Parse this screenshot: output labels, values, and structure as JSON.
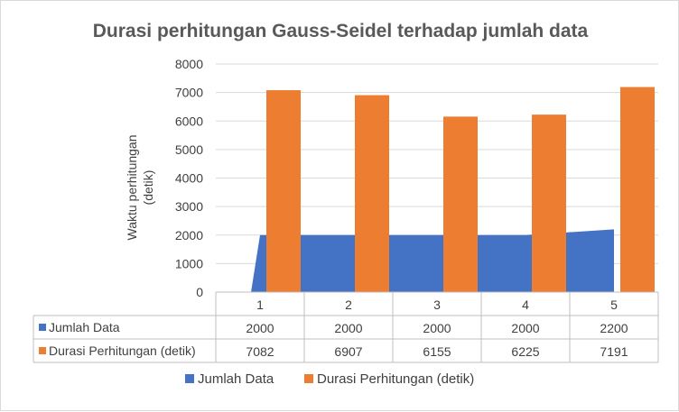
{
  "chart_data": {
    "type": "bar",
    "title": "Durasi perhitungan Gauss-Seidel terhadap jumlah data",
    "ylabel_line1": "Waktu perhitungan",
    "ylabel_line2": "(detik)",
    "xlabel": "",
    "categories": [
      "1",
      "2",
      "3",
      "4",
      "5"
    ],
    "ylim": [
      0,
      8000
    ],
    "yticks": [
      "0",
      "1000",
      "2000",
      "3000",
      "4000",
      "5000",
      "6000",
      "7000",
      "8000"
    ],
    "grid": true,
    "legend_position": "bottom",
    "series": [
      {
        "name": "Jumlah Data",
        "render": "area",
        "color": "#4472c4",
        "values": [
          2000,
          2000,
          2000,
          2000,
          2200
        ]
      },
      {
        "name": "Durasi Perhitungan (detik)",
        "render": "bar",
        "color": "#ed7d31",
        "values": [
          7082,
          6907,
          6155,
          6225,
          7191
        ]
      }
    ]
  }
}
